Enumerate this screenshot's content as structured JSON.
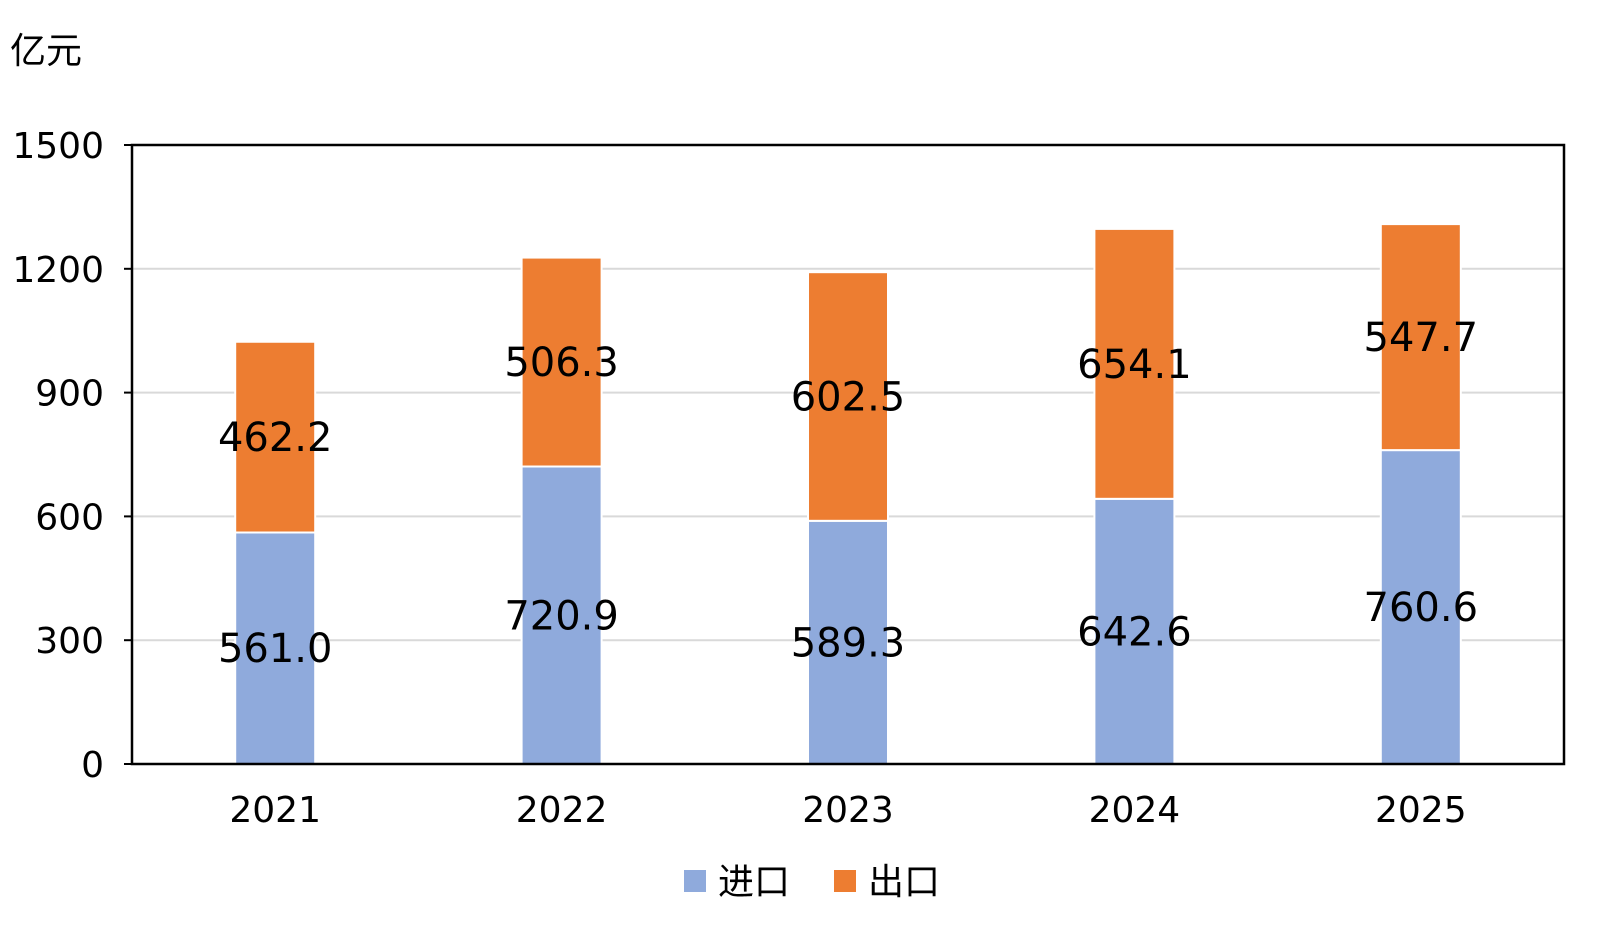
{
  "chart_data": {
    "type": "bar",
    "stacked": true,
    "ylabel": "亿元",
    "ylim": [
      0,
      1500
    ],
    "yticks": [
      "0",
      "300",
      "600",
      "900",
      "1200",
      "1500"
    ],
    "categories": [
      "2021",
      "2022",
      "2023",
      "2024",
      "2025"
    ],
    "series": [
      {
        "name": "进口",
        "values": [
          561.0,
          720.9,
          589.3,
          642.6,
          760.6
        ],
        "labels": [
          "561.0",
          "720.9",
          "589.3",
          "642.6",
          "760.6"
        ],
        "color": "#8faadc"
      },
      {
        "name": "出口",
        "values": [
          462.2,
          506.3,
          602.5,
          654.1,
          547.7
        ],
        "labels": [
          "462.2",
          "506.3",
          "602.5",
          "654.1",
          "547.7"
        ],
        "color": "#ed7d31"
      }
    ],
    "grid": true,
    "legend": "bottom"
  }
}
